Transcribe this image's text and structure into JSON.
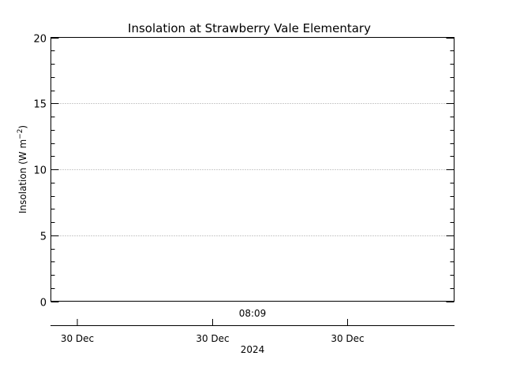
{
  "chart_data": {
    "type": "line",
    "title": "Insolation at Strawberry Vale Elementary",
    "ylabel": {
      "prefix": "Insolation (W m",
      "superscript": "−2",
      "suffix": ")"
    },
    "ylim": [
      0,
      20
    ],
    "yticks": [
      0,
      5,
      10,
      15,
      20
    ],
    "y_minor_step": 1,
    "grid": true,
    "x_top_label": "08:09",
    "x_ticks": [
      "30 Dec",
      "30 Dec",
      "30 Dec"
    ],
    "x_year_label": "2024",
    "series": []
  }
}
